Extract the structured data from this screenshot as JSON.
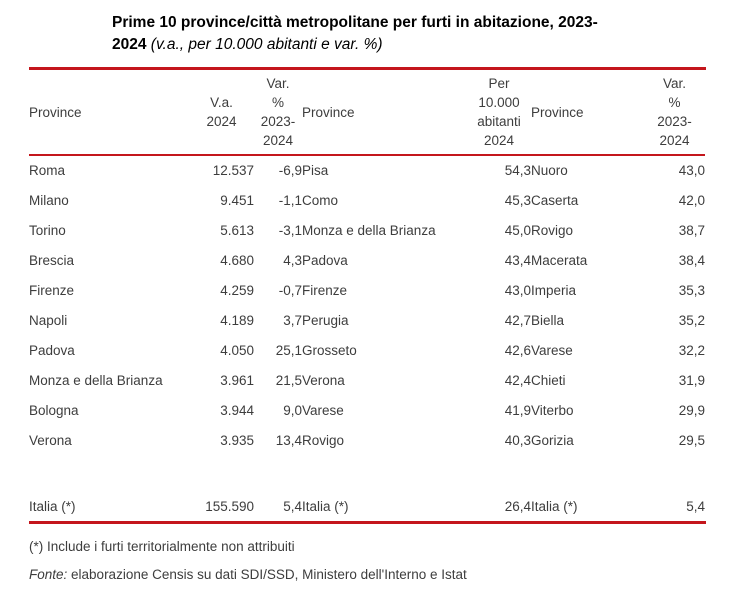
{
  "title": {
    "line1": "Prime 10 province/città metropolitane per furti in abitazione, 2023-",
    "line2_bold": "2024 ",
    "line2_italic": "(v.a., per 10.000 abitanti e var. %)"
  },
  "colors": {
    "rule_red": "#c4161c",
    "body_text": "#3d3d3d"
  },
  "table": {
    "headers": {
      "province1": "Province",
      "va": "V.a.\n2024",
      "var1": "Var.\n%\n2023-\n2024",
      "province2": "Province",
      "per10k": "Per\n10.000\nabitanti\n2024",
      "province3": "Province",
      "var3": "Var.\n%\n2023-\n2024"
    },
    "rows": [
      {
        "p1": "Roma",
        "va": "12.537",
        "v1": "-6,9",
        "p2": "Pisa",
        "per": "54,3",
        "p3": "Nuoro",
        "v3": "43,0"
      },
      {
        "p1": "Milano",
        "va": "9.451",
        "v1": "-1,1",
        "p2": "Como",
        "per": "45,3",
        "p3": "Caserta",
        "v3": "42,0"
      },
      {
        "p1": "Torino",
        "va": "5.613",
        "v1": "-3,1",
        "p2": "Monza e della Brianza",
        "per": "45,0",
        "p3": "Rovigo",
        "v3": "38,7"
      },
      {
        "p1": "Brescia",
        "va": "4.680",
        "v1": "4,3",
        "p2": "Padova",
        "per": "43,4",
        "p3": "Macerata",
        "v3": "38,4"
      },
      {
        "p1": "Firenze",
        "va": "4.259",
        "v1": "-0,7",
        "p2": "Firenze",
        "per": "43,0",
        "p3": "Imperia",
        "v3": "35,3"
      },
      {
        "p1": "Napoli",
        "va": "4.189",
        "v1": "3,7",
        "p2": "Perugia",
        "per": "42,7",
        "p3": "Biella",
        "v3": "35,2"
      },
      {
        "p1": "Padova",
        "va": "4.050",
        "v1": "25,1",
        "p2": "Grosseto",
        "per": "42,6",
        "p3": "Varese",
        "v3": "32,2"
      },
      {
        "p1": "Monza e della Brianza",
        "va": "3.961",
        "v1": "21,5",
        "p2": "Verona",
        "per": "42,4",
        "p3": "Chieti",
        "v3": "31,9"
      },
      {
        "p1": "Bologna",
        "va": "3.944",
        "v1": "9,0",
        "p2": "Varese",
        "per": "41,9",
        "p3": "Viterbo",
        "v3": "29,9"
      },
      {
        "p1": "Verona",
        "va": "3.935",
        "v1": "13,4",
        "p2": "Rovigo",
        "per": "40,3",
        "p3": "Gorizia",
        "v3": "29,5"
      }
    ],
    "totals": {
      "label1": "Italia (*)",
      "va": "155.590",
      "v1": "5,4",
      "label2": "Italia (*)",
      "per": "26,4",
      "label3": "Italia (*)",
      "v3": "5,4"
    }
  },
  "footnotes": {
    "note": "(*) Include i furti territorialmente non attribuiti",
    "source_label": "Fonte:",
    "source_text": " elaborazione Censis su dati SDI/SSD, Ministero dell'Interno e Istat"
  }
}
